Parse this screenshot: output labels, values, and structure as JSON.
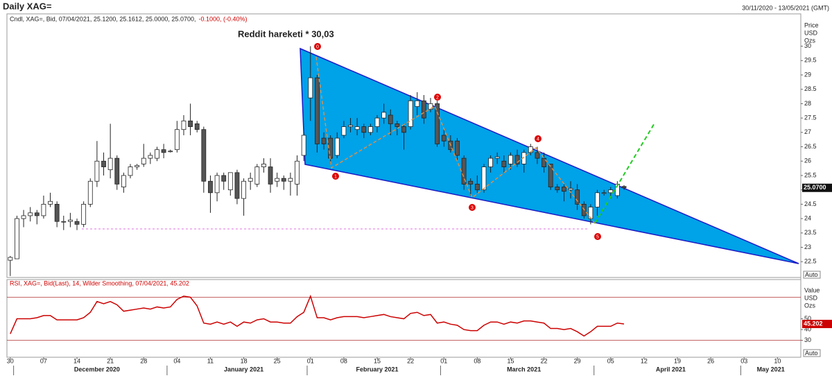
{
  "chart_data": {
    "type": "candlestick",
    "title": "Daily XAG=",
    "date_range": "30/11/2020 - 13/05/2021 (GMT)",
    "legend": "Cndl, XAG=, Bid, 07/04/2021, 25.1200, 25.1612, 25.0000, 25.0700,",
    "legend_change": "-0.1000, (-0.40%)",
    "y_label": [
      "Price",
      "USD",
      "Ozs"
    ],
    "auto": "Auto",
    "last_label": "25.0700",
    "up_color": "#ffffff",
    "down_color": "#555555",
    "x": [
      "2020-11-30",
      "2020-12-01",
      "2020-12-02",
      "2020-12-03",
      "2020-12-04",
      "2020-12-07",
      "2020-12-08",
      "2020-12-09",
      "2020-12-10",
      "2020-12-11",
      "2020-12-14",
      "2020-12-15",
      "2020-12-16",
      "2020-12-17",
      "2020-12-18",
      "2020-12-21",
      "2020-12-22",
      "2020-12-23",
      "2020-12-24",
      "2020-12-25",
      "2020-12-28",
      "2020-12-29",
      "2020-12-30",
      "2020-12-31",
      "2021-01-01",
      "2021-01-04",
      "2021-01-05",
      "2021-01-06",
      "2021-01-07",
      "2021-01-08",
      "2021-01-11",
      "2021-01-12",
      "2021-01-13",
      "2021-01-14",
      "2021-01-15",
      "2021-01-18",
      "2021-01-19",
      "2021-01-20",
      "2021-01-21",
      "2021-01-22",
      "2021-01-25",
      "2021-01-26",
      "2021-01-27",
      "2021-01-28",
      "2021-01-29",
      "2021-02-01",
      "2021-02-02",
      "2021-02-03",
      "2021-02-04",
      "2021-02-05",
      "2021-02-08",
      "2021-02-09",
      "2021-02-10",
      "2021-02-11",
      "2021-02-12",
      "2021-02-15",
      "2021-02-16",
      "2021-02-17",
      "2021-02-18",
      "2021-02-19",
      "2021-02-22",
      "2021-02-23",
      "2021-02-24",
      "2021-02-25",
      "2021-02-26",
      "2021-03-01",
      "2021-03-02",
      "2021-03-03",
      "2021-03-04",
      "2021-03-05",
      "2021-03-08",
      "2021-03-09",
      "2021-03-10",
      "2021-03-11",
      "2021-03-12",
      "2021-03-15",
      "2021-03-16",
      "2021-03-17",
      "2021-03-18",
      "2021-03-19",
      "2021-03-22",
      "2021-03-23",
      "2021-03-24",
      "2021-03-25",
      "2021-03-26",
      "2021-03-29",
      "2021-03-30",
      "2021-03-31",
      "2021-04-01",
      "2021-04-02",
      "2021-04-05",
      "2021-04-06",
      "2021-04-07"
    ],
    "open": [
      22.55,
      22.6,
      24.0,
      24.1,
      24.2,
      24.1,
      24.5,
      24.5,
      23.9,
      23.9,
      23.9,
      23.8,
      24.5,
      25.3,
      26.0,
      25.7,
      26.1,
      25.1,
      25.5,
      25.8,
      25.9,
      26.1,
      26.1,
      26.4,
      26.35,
      26.4,
      27.1,
      27.4,
      27.3,
      27.1,
      25.3,
      24.9,
      25.5,
      25.0,
      25.6,
      24.7,
      25.3,
      25.2,
      25.8,
      25.8,
      25.3,
      25.4,
      25.3,
      25.2,
      26.2,
      28.2,
      28.9,
      26.8,
      26.8,
      26.2,
      26.9,
      27.2,
      27.1,
      27.2,
      27.0,
      27.2,
      27.5,
      27.6,
      27.3,
      27.2,
      27.2,
      27.9,
      28.1,
      27.8,
      28.0,
      26.9,
      26.7,
      26.7,
      26.1,
      25.3,
      25.2,
      25.0,
      25.8,
      26.1,
      26.0,
      25.9,
      26.2,
      25.9,
      26.3,
      26.3,
      26.1,
      25.9,
      25.1,
      25.1,
      25.0,
      25.0,
      24.5,
      24.0,
      24.4,
      24.9,
      24.9,
      24.8,
      25.12
    ],
    "high": [
      22.7,
      24.1,
      24.3,
      24.4,
      24.3,
      24.8,
      24.9,
      24.6,
      24.1,
      24.2,
      24.0,
      24.6,
      25.4,
      26.7,
      26.3,
      27.3,
      26.2,
      25.6,
      25.9,
      25.9,
      26.6,
      26.3,
      26.5,
      26.6,
      26.4,
      27.4,
      27.6,
      28.0,
      27.4,
      27.2,
      25.5,
      25.6,
      25.6,
      25.6,
      25.7,
      25.4,
      25.6,
      25.9,
      26.1,
      26.1,
      25.6,
      25.5,
      25.6,
      26.2,
      27.0,
      30.0,
      29.0,
      27.0,
      26.9,
      27.0,
      27.4,
      27.5,
      27.5,
      27.3,
      27.3,
      27.6,
      28.0,
      27.8,
      27.4,
      27.3,
      28.3,
      28.4,
      28.3,
      28.2,
      28.1,
      27.1,
      26.9,
      26.8,
      26.2,
      25.4,
      25.5,
      25.9,
      26.2,
      26.3,
      26.2,
      26.3,
      26.4,
      26.4,
      26.6,
      26.5,
      26.3,
      25.9,
      25.2,
      25.2,
      25.3,
      25.2,
      24.6,
      24.5,
      25.0,
      25.0,
      25.1,
      25.3,
      25.1612
    ],
    "low": [
      22.0,
      22.6,
      23.7,
      23.9,
      23.8,
      24.0,
      24.4,
      23.7,
      23.6,
      23.7,
      23.6,
      23.7,
      24.4,
      25.1,
      25.5,
      25.4,
      25.0,
      24.9,
      25.4,
      25.7,
      25.8,
      25.9,
      26.0,
      26.1,
      26.3,
      26.3,
      26.9,
      26.9,
      27.0,
      24.9,
      24.2,
      24.6,
      25.0,
      24.8,
      24.5,
      24.1,
      25.0,
      25.1,
      25.6,
      24.9,
      25.1,
      25.0,
      24.8,
      24.8,
      26.0,
      27.4,
      26.3,
      26.4,
      25.9,
      26.1,
      26.8,
      27.0,
      26.9,
      26.8,
      26.9,
      27.0,
      27.3,
      26.9,
      26.9,
      26.4,
      27.1,
      27.6,
      27.3,
      27.7,
      26.5,
      26.5,
      26.3,
      26.0,
      25.0,
      24.8,
      24.9,
      24.9,
      25.6,
      25.9,
      25.6,
      25.7,
      25.8,
      25.6,
      26.2,
      25.9,
      25.6,
      25.0,
      24.9,
      24.6,
      24.7,
      24.3,
      24.0,
      23.8,
      24.1,
      24.8,
      24.7,
      24.7,
      25.0
    ],
    "close": [
      22.65,
      24.0,
      24.1,
      24.2,
      24.1,
      24.5,
      24.6,
      23.9,
      23.9,
      23.95,
      23.8,
      24.5,
      25.3,
      26.0,
      25.8,
      26.1,
      25.2,
      25.5,
      25.8,
      25.85,
      26.1,
      26.2,
      26.4,
      26.3,
      26.35,
      27.1,
      27.4,
      27.2,
      27.1,
      25.3,
      24.9,
      25.5,
      25.3,
      25.6,
      24.7,
      25.3,
      25.4,
      25.8,
      25.9,
      25.2,
      25.4,
      25.3,
      25.4,
      26.0,
      26.9,
      28.9,
      26.6,
      26.6,
      26.1,
      26.8,
      27.2,
      27.25,
      27.2,
      27.0,
      27.2,
      27.5,
      27.7,
      27.3,
      27.2,
      27.0,
      28.1,
      28.1,
      27.5,
      28.0,
      26.6,
      26.7,
      26.4,
      26.2,
      25.2,
      25.2,
      25.0,
      25.8,
      26.1,
      26.15,
      25.8,
      26.2,
      25.9,
      26.3,
      26.5,
      26.1,
      25.8,
      25.1,
      25.0,
      24.95,
      25.05,
      24.5,
      24.1,
      24.4,
      24.9,
      24.9,
      25.0,
      25.2,
      25.07
    ],
    "xlim": [
      "2020-11-30",
      "2021-05-13"
    ],
    "xticks": [
      {
        "value": "2020-11-30",
        "label": "30"
      },
      {
        "value": "2020-12-07",
        "label": "07"
      },
      {
        "value": "2020-12-14",
        "label": "14"
      },
      {
        "value": "2020-12-21",
        "label": "21"
      },
      {
        "value": "2020-12-28",
        "label": "28"
      },
      {
        "value": "2021-01-04",
        "label": "04"
      },
      {
        "value": "2021-01-11",
        "label": "11"
      },
      {
        "value": "2021-01-18",
        "label": "18"
      },
      {
        "value": "2021-01-25",
        "label": "25"
      },
      {
        "value": "2021-02-01",
        "label": "01"
      },
      {
        "value": "2021-02-08",
        "label": "08"
      },
      {
        "value": "2021-02-15",
        "label": "15"
      },
      {
        "value": "2021-02-22",
        "label": "22"
      },
      {
        "value": "2021-03-01",
        "label": "01"
      },
      {
        "value": "2021-03-08",
        "label": "08"
      },
      {
        "value": "2021-03-15",
        "label": "15"
      },
      {
        "value": "2021-03-22",
        "label": "22"
      },
      {
        "value": "2021-03-29",
        "label": "29"
      },
      {
        "value": "2021-04-05",
        "label": "05"
      },
      {
        "value": "2021-04-12",
        "label": "12"
      },
      {
        "value": "2021-04-19",
        "label": "19"
      },
      {
        "value": "2021-04-26",
        "label": "26"
      },
      {
        "value": "2021-05-03",
        "label": "03"
      },
      {
        "value": "2021-05-10",
        "label": "10"
      }
    ],
    "month_labels": [
      {
        "value": "2020-12-17",
        "label": "December 2020"
      },
      {
        "value": "2021-01-18",
        "label": "January 2021"
      },
      {
        "value": "2021-02-15",
        "label": "February 2021"
      },
      {
        "value": "2021-03-17",
        "label": "March 2021"
      },
      {
        "value": "2021-04-16",
        "label": "April 2021"
      },
      {
        "value": "2021-05-07",
        "label": "May 2021"
      }
    ],
    "ylim": [
      21.95,
      31.125
    ],
    "yticks": [
      22.5,
      23,
      23.5,
      24,
      24.5,
      25,
      25.5,
      26,
      26.5,
      27,
      27.5,
      28,
      28.5,
      29,
      29.5,
      30
    ],
    "annotation": "Reddit hareketi  * 30,03",
    "wave_labels": [
      "0",
      "1",
      "2",
      "3",
      "4",
      "5"
    ],
    "rsi": {
      "type": "line",
      "legend": "RSI, XAG=, Bid(Last),  14, Wilder Smoothing, 07/04/2021, 45.202",
      "y_label": [
        "Value",
        "USD",
        "Ozs"
      ],
      "auto": "Auto",
      "color": "#cc0000",
      "values": [
        36,
        50,
        50,
        50,
        51,
        53,
        53,
        49,
        49,
        49,
        49,
        51,
        56,
        66,
        64,
        66,
        63,
        57,
        58,
        59,
        60,
        59,
        61,
        60,
        61,
        68,
        71,
        70,
        62,
        46,
        45,
        47,
        45,
        47,
        43,
        47,
        46,
        49,
        50,
        47,
        47,
        46,
        46,
        52,
        56,
        71,
        51,
        51,
        49,
        51,
        52,
        52,
        52,
        51,
        52,
        53,
        54,
        52,
        51,
        50,
        55,
        56,
        53,
        54,
        46,
        47,
        45,
        44,
        40,
        39,
        39,
        44,
        47,
        47,
        45,
        47,
        46,
        48,
        48,
        47,
        46,
        41,
        41,
        40,
        41,
        38,
        34,
        38,
        43,
        43,
        43,
        46,
        45.202
      ],
      "value_labels_last": "45.202",
      "ylim": [
        14.3,
        86.4
      ],
      "yticks": [
        30,
        40,
        50
      ],
      "hlines": [
        30,
        70
      ]
    }
  }
}
